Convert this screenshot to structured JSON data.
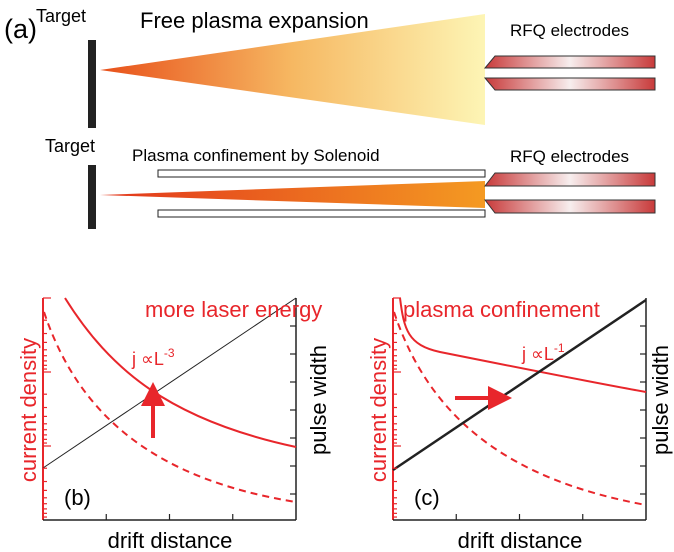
{
  "panel_a": {
    "label": "(a)",
    "top": {
      "target": "Target",
      "title": "Free plasma expansion",
      "electrodes": "RFQ electrodes"
    },
    "bottom": {
      "target": "Target",
      "title": "Plasma confinement by Solenoid",
      "electrodes": "RFQ electrodes"
    }
  },
  "panel_b": {
    "label": "(b)",
    "y_label": "current density",
    "y2_label": "pulse width",
    "x_label": "drift distance",
    "annotation": "more laser energy",
    "formula": "j ∝L",
    "exponent": "-3"
  },
  "panel_c": {
    "label": "(c)",
    "y_label": "current density",
    "y2_label": "pulse width",
    "x_label": "drift distance",
    "annotation": "plasma confinement",
    "formula": "j ∝L",
    "exponent": "-1"
  }
}
